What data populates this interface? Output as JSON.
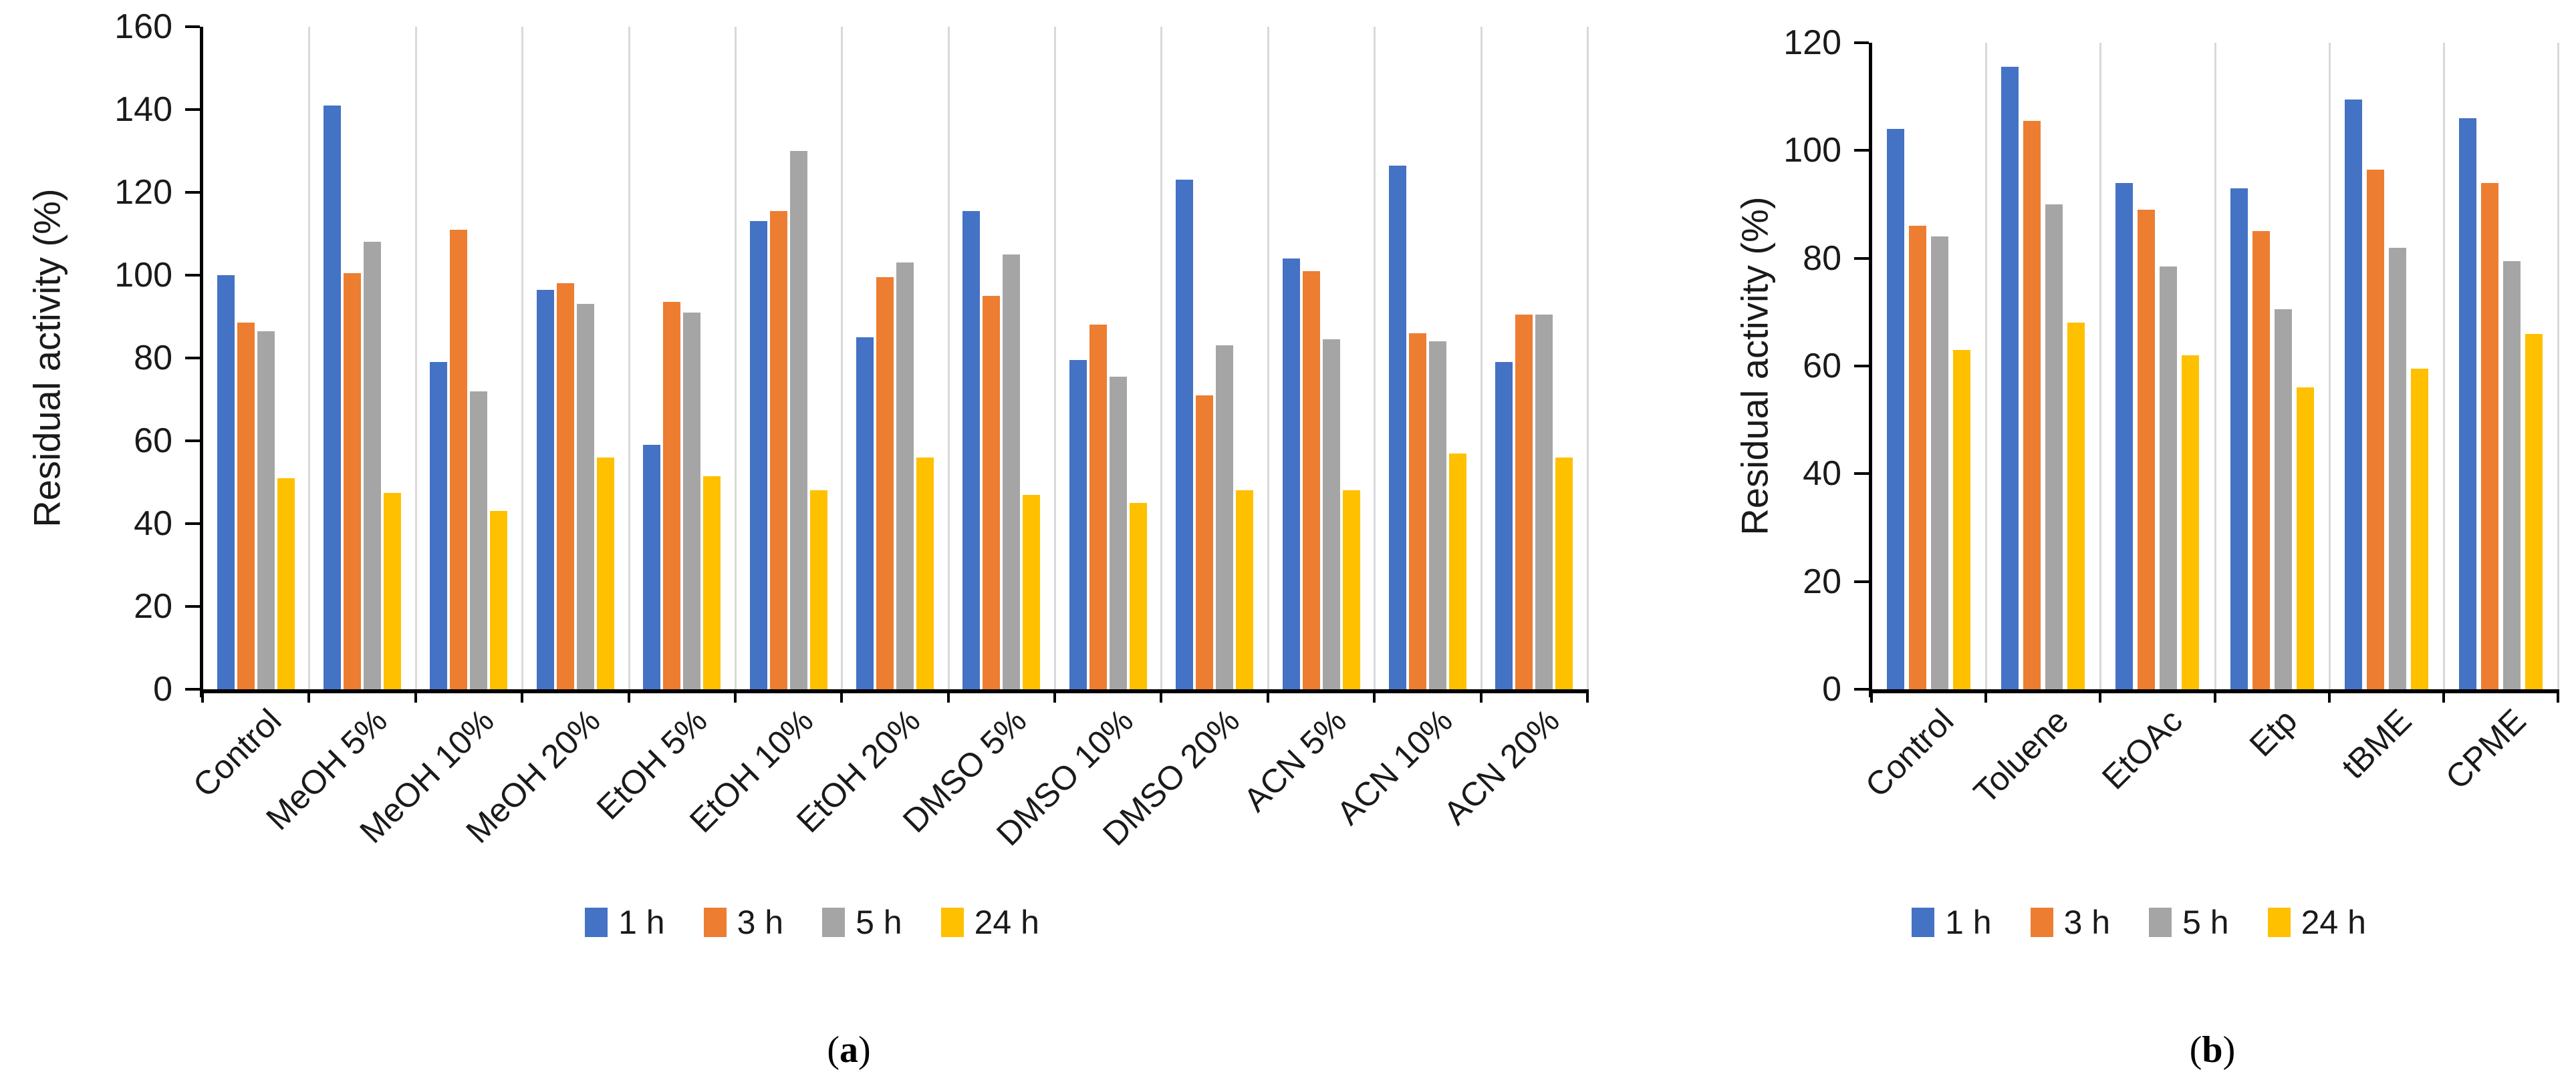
{
  "figure": {
    "background": "#FFFFFF",
    "axis_color": "#000000",
    "grid_color": "#D9D9D9",
    "text_color": "#1A1A1A"
  },
  "chart_data": [
    {
      "panel": "a",
      "type": "bar",
      "title": "",
      "ylabel": "Residual activity (%)",
      "xlabel": "",
      "ylim": [
        0,
        160
      ],
      "ytick_step": 20,
      "ytick_labels": [
        "0",
        "20",
        "40",
        "60",
        "80",
        "100",
        "120",
        "140",
        "160"
      ],
      "grid": "vertical-category-separators",
      "legend_position": "bottom",
      "caption": {
        "open": "(",
        "label": "a",
        "close": ")"
      },
      "categories": [
        "Control",
        "MeOH 5%",
        "MeOH 10%",
        "MeOH 20%",
        "EtOH 5%",
        "EtOH 10%",
        "EtOH 20%",
        "DMSO 5%",
        "DMSO 10%",
        "DMSO 20%",
        "ACN 5%",
        "ACN 10%",
        "ACN 20%"
      ],
      "series": [
        {
          "name": "1 h",
          "color": "#4472C4",
          "values": [
            100,
            141,
            79,
            96.5,
            59,
            113,
            85,
            115.5,
            79.5,
            123,
            104,
            126.5,
            79
          ]
        },
        {
          "name": "3 h",
          "color": "#ED7D31",
          "values": [
            88.5,
            100.5,
            111,
            98,
            93.5,
            115.5,
            99.5,
            95,
            88,
            71,
            101,
            86,
            90.5
          ]
        },
        {
          "name": "5 h",
          "color": "#A5A5A5",
          "values": [
            86.5,
            108,
            72,
            93,
            91,
            130,
            103,
            105,
            75.5,
            83,
            84.5,
            84,
            90.5
          ]
        },
        {
          "name": "24 h",
          "color": "#FFC000",
          "values": [
            51,
            47.5,
            43,
            56,
            51.5,
            48,
            56,
            47,
            45,
            48,
            48,
            57,
            56
          ]
        }
      ]
    },
    {
      "panel": "b",
      "type": "bar",
      "title": "",
      "ylabel": "Residual activity (%)",
      "xlabel": "",
      "ylim": [
        0,
        120
      ],
      "ytick_step": 20,
      "ytick_labels": [
        "0",
        "20",
        "40",
        "60",
        "80",
        "100",
        "120"
      ],
      "grid": "vertical-category-separators",
      "legend_position": "bottom",
      "caption": {
        "open": "(",
        "label": "b",
        "close": ")"
      },
      "categories": [
        "Control",
        "Toluene",
        "EtOAc",
        "Etp",
        "tBME",
        "CPME"
      ],
      "series": [
        {
          "name": "1 h",
          "color": "#4472C4",
          "values": [
            104,
            115.5,
            94,
            93,
            109.5,
            106
          ]
        },
        {
          "name": "3 h",
          "color": "#ED7D31",
          "values": [
            86,
            105.5,
            89,
            85,
            96.5,
            94
          ]
        },
        {
          "name": "5 h",
          "color": "#A5A5A5",
          "values": [
            84,
            90,
            78.5,
            70.5,
            82,
            79.5
          ]
        },
        {
          "name": "24 h",
          "color": "#FFC000",
          "values": [
            63,
            68,
            62,
            56,
            59.5,
            66
          ]
        }
      ]
    }
  ]
}
